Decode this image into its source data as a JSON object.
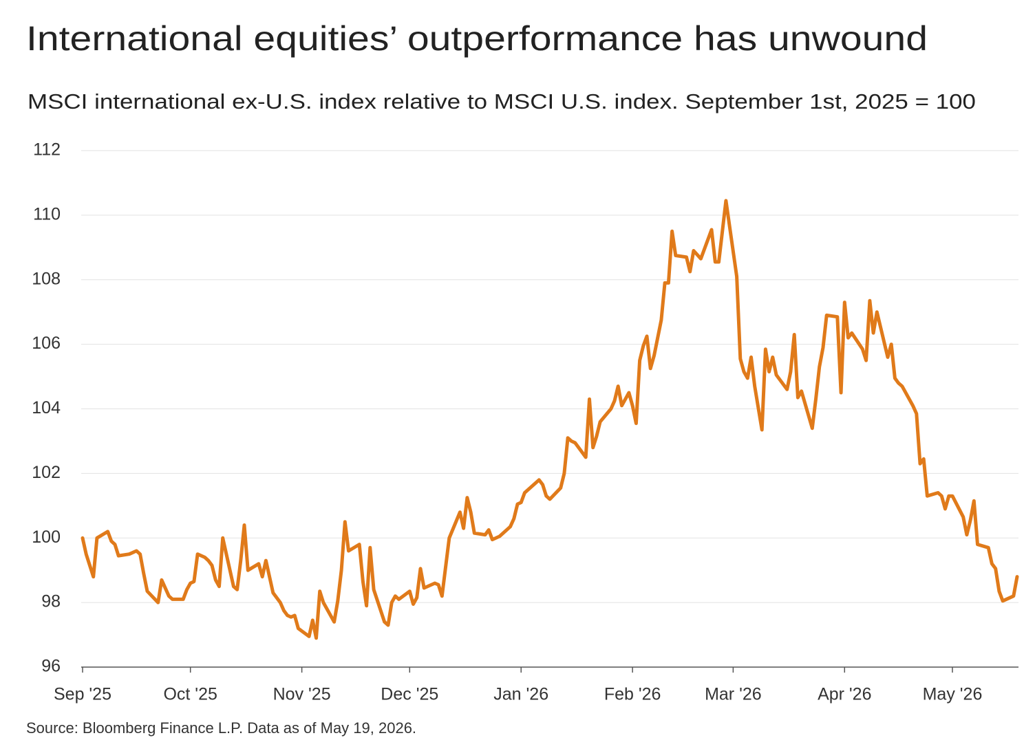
{
  "chart_data": {
    "type": "line",
    "title": "International equities’ outperformance has unwound",
    "subtitle": "MSCI international ex-U.S. index relative to MSCI U.S. index. September 1st, 2025 = 100",
    "source": "Source: Bloomberg Finance L.P. Data as of May 19, 2026.",
    "xlim": [
      0,
      260
    ],
    "xticks": [
      {
        "value": 0,
        "label": "Sep '25"
      },
      {
        "value": 30,
        "label": "Oct '25"
      },
      {
        "value": 61,
        "label": "Nov '25"
      },
      {
        "value": 91,
        "label": "Dec '25"
      },
      {
        "value": 122,
        "label": "Jan '26"
      },
      {
        "value": 153,
        "label": "Feb '26"
      },
      {
        "value": 181,
        "label": "Mar '26"
      },
      {
        "value": 212,
        "label": "Apr '26"
      },
      {
        "value": 242,
        "label": "May '26"
      }
    ],
    "ylim": [
      96,
      112
    ],
    "yticks": [
      96,
      98,
      100,
      102,
      104,
      106,
      108,
      110,
      112
    ],
    "grid": true,
    "series": [
      {
        "color": "#e07a1a",
        "x": [
          0,
          1,
          3,
          4,
          7,
          8,
          9,
          10,
          13,
          15,
          16,
          17,
          18,
          21,
          22,
          24,
          25,
          28,
          29,
          30,
          31,
          32,
          34,
          35,
          36,
          37,
          38,
          39,
          42,
          43,
          44,
          45,
          46,
          49,
          50,
          51,
          53,
          55,
          56,
          57,
          58,
          59,
          60,
          63,
          64,
          65,
          66,
          67,
          70,
          71,
          72,
          73,
          74,
          77,
          78,
          79,
          80,
          81,
          84,
          85,
          86,
          87,
          88,
          91,
          92,
          93,
          94,
          95,
          98,
          99,
          100,
          102,
          105,
          106,
          107,
          108,
          109,
          112,
          113,
          114,
          116,
          119,
          120,
          121,
          122,
          123,
          126,
          127,
          128,
          129,
          130,
          133,
          134,
          135,
          136,
          137,
          138,
          140,
          141,
          142,
          143,
          144,
          147,
          148,
          149,
          150,
          151,
          152,
          153,
          154,
          155,
          156,
          157,
          158,
          159,
          161,
          162,
          163,
          164,
          165,
          168,
          169,
          170,
          172,
          175,
          176,
          177,
          179,
          182,
          183,
          184,
          185,
          186,
          187,
          189,
          190,
          191,
          192,
          193,
          196,
          197,
          198,
          199,
          200,
          203,
          204,
          205,
          206,
          207,
          210,
          211,
          212,
          213,
          214,
          217,
          218,
          219,
          220,
          221,
          224,
          225,
          226,
          227,
          228,
          231,
          232,
          233,
          234,
          235,
          238,
          239,
          240,
          241,
          242,
          245,
          246,
          247,
          248,
          249,
          252,
          253,
          254,
          255,
          256,
          259,
          260
        ],
        "values": [
          100.0,
          99.5,
          98.8,
          100.0,
          100.2,
          99.9,
          99.8,
          99.45,
          99.5,
          99.6,
          99.5,
          98.9,
          98.35,
          98.0,
          98.7,
          98.2,
          98.1,
          98.1,
          98.4,
          98.6,
          98.65,
          99.5,
          99.4,
          99.3,
          99.15,
          98.7,
          98.5,
          100.0,
          98.5,
          98.4,
          99.3,
          100.4,
          99.0,
          99.2,
          98.8,
          99.3,
          98.3,
          98.0,
          97.75,
          97.6,
          97.55,
          97.6,
          97.2,
          96.95,
          97.45,
          96.9,
          98.35,
          98.0,
          97.4,
          98.05,
          99.0,
          100.5,
          99.6,
          99.8,
          98.65,
          97.9,
          99.7,
          98.4,
          97.4,
          97.3,
          98.0,
          98.2,
          98.1,
          98.35,
          97.95,
          98.15,
          99.05,
          98.45,
          98.6,
          98.55,
          98.2,
          100.0,
          100.8,
          100.3,
          101.25,
          100.8,
          100.15,
          100.1,
          100.25,
          99.95,
          100.05,
          100.35,
          100.6,
          101.05,
          101.1,
          101.4,
          101.7,
          101.8,
          101.65,
          101.3,
          101.2,
          101.55,
          102.0,
          103.1,
          103.0,
          102.95,
          102.8,
          102.5,
          104.3,
          102.8,
          103.15,
          103.6,
          104.0,
          104.25,
          104.7,
          104.1,
          104.3,
          104.5,
          104.1,
          103.55,
          105.5,
          105.95,
          106.25,
          105.25,
          105.65,
          106.75,
          107.9,
          107.9,
          109.5,
          108.75,
          108.7,
          108.25,
          108.9,
          108.65,
          109.55,
          108.55,
          108.55,
          110.45,
          108.1,
          105.55,
          105.15,
          104.95,
          105.6,
          104.7,
          103.35,
          105.85,
          105.15,
          105.6,
          105.05,
          104.6,
          105.15,
          106.3,
          104.35,
          104.55,
          103.4,
          104.3,
          105.3,
          105.9,
          106.9,
          106.85,
          104.5,
          107.3,
          106.2,
          106.35,
          105.85,
          105.5,
          107.35,
          106.35,
          107.0,
          105.6,
          106.0,
          104.95,
          104.8,
          104.7,
          104.1,
          103.85,
          102.3,
          102.45,
          101.3,
          101.4,
          101.3,
          100.9,
          101.3,
          101.3,
          100.65,
          100.1,
          100.55,
          101.15,
          99.8,
          99.7,
          99.2,
          99.05,
          98.35,
          98.05,
          98.2,
          98.8
        ]
      }
    ]
  }
}
